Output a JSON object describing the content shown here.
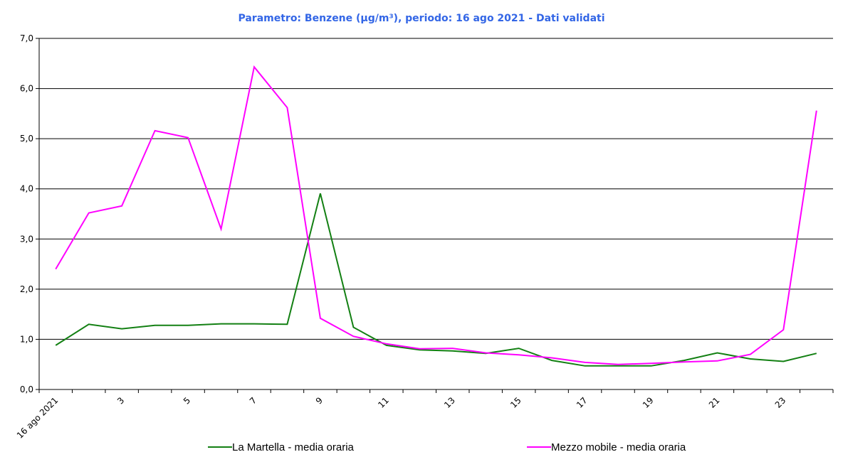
{
  "chart_data": {
    "type": "line",
    "title": "Parametro: Benzene (µg/m³), periodo: 16 ago 2021 - Dati validati",
    "categories": [
      "16 ago 2021",
      null,
      "3",
      null,
      "5",
      null,
      "7",
      null,
      "9",
      null,
      "11",
      null,
      "13",
      null,
      "15",
      null,
      "17",
      null,
      "19",
      null,
      "21",
      null,
      "23",
      null
    ],
    "series": [
      {
        "name": "La Martella - media oraria",
        "color": "#138013",
        "values": [
          0.88,
          1.3,
          1.21,
          1.28,
          1.28,
          1.31,
          1.31,
          1.3,
          3.91,
          1.24,
          0.88,
          0.79,
          0.77,
          0.72,
          0.82,
          0.58,
          0.47,
          0.47,
          0.47,
          0.58,
          0.73,
          0.61,
          0.56,
          0.72
        ]
      },
      {
        "name": "Mezzo mobile - media oraria",
        "color": "#ff00ff",
        "values": [
          2.4,
          3.52,
          3.66,
          5.16,
          5.02,
          3.2,
          6.43,
          5.62,
          1.42,
          1.06,
          0.91,
          0.81,
          0.82,
          0.73,
          0.69,
          0.63,
          0.54,
          0.5,
          0.52,
          0.55,
          0.57,
          0.7,
          1.19,
          5.56
        ]
      }
    ],
    "ylim": [
      0,
      7
    ],
    "yticks": [
      {
        "value": 0,
        "label": "0,0"
      },
      {
        "value": 1,
        "label": "1,0"
      },
      {
        "value": 2,
        "label": "2,0"
      },
      {
        "value": 3,
        "label": "3,0"
      },
      {
        "value": 4,
        "label": "4,0"
      },
      {
        "value": 5,
        "label": "5,0"
      },
      {
        "value": 6,
        "label": "6,0"
      },
      {
        "value": 7,
        "label": "7,0"
      }
    ],
    "grid": true
  }
}
